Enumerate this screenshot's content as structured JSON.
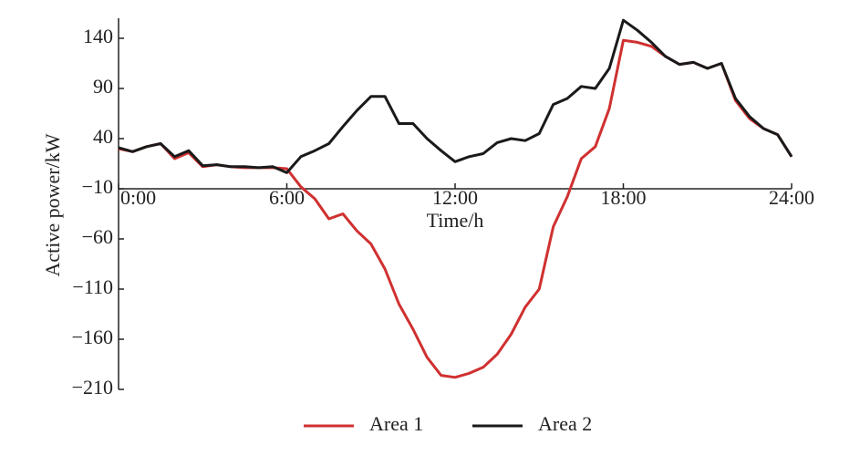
{
  "chart_data": {
    "type": "line",
    "x_label": "Time/h",
    "y_label": "Active power/kW",
    "x": [
      0,
      0.5,
      1,
      1.5,
      2,
      2.5,
      3,
      3.5,
      4,
      4.5,
      5,
      5.5,
      6,
      6.5,
      7,
      7.5,
      8,
      8.5,
      9,
      9.5,
      10,
      10.5,
      11,
      11.5,
      12,
      12.5,
      13,
      13.5,
      14,
      14.5,
      15,
      15.5,
      16,
      16.5,
      17,
      17.5,
      18,
      18.5,
      19,
      19.5,
      20,
      20.5,
      21,
      21.5,
      22,
      22.5,
      23,
      23.5,
      24
    ],
    "series": [
      {
        "name": "Area 1",
        "color": "#d03030",
        "values": [
          30,
          27,
          32,
          35,
          20,
          26,
          12,
          14,
          12,
          11,
          11,
          11,
          10,
          -8,
          -20,
          -40,
          -35,
          -52,
          -65,
          -90,
          -125,
          -150,
          -178,
          -196,
          -198,
          -194,
          -188,
          -175,
          -155,
          -128,
          -110,
          -48,
          -18,
          20,
          32,
          70,
          138,
          136,
          132,
          122,
          114,
          116,
          110,
          115,
          78,
          60,
          50,
          44,
          22
        ]
      },
      {
        "name": "Area 2",
        "color": "#1a1a1a",
        "values": [
          31,
          27,
          32,
          35,
          22,
          28,
          13,
          14,
          12,
          12,
          11,
          12,
          6,
          22,
          28,
          35,
          52,
          68,
          82,
          82,
          55,
          55,
          40,
          28,
          17,
          22,
          25,
          36,
          40,
          38,
          45,
          74,
          80,
          92,
          90,
          110,
          158,
          148,
          136,
          122,
          114,
          116,
          110,
          115,
          80,
          62,
          50,
          44,
          22
        ]
      }
    ],
    "xlim": [
      0,
      24
    ],
    "xticks": [
      {
        "value": 0,
        "label": "0:00"
      },
      {
        "value": 6,
        "label": "6:00"
      },
      {
        "value": 12,
        "label": "12:00"
      },
      {
        "value": 18,
        "label": "18:00"
      },
      {
        "value": 24,
        "label": "24:00"
      }
    ],
    "ylim": [
      -210,
      160
    ],
    "yticks": [
      {
        "value": -210,
        "label": "−210"
      },
      {
        "value": -160,
        "label": "−160"
      },
      {
        "value": -110,
        "label": "−110"
      },
      {
        "value": -60,
        "label": "−60"
      },
      {
        "value": -10,
        "label": "−10"
      },
      40,
      90,
      140
    ],
    "grid": false,
    "legend": "bottom"
  }
}
